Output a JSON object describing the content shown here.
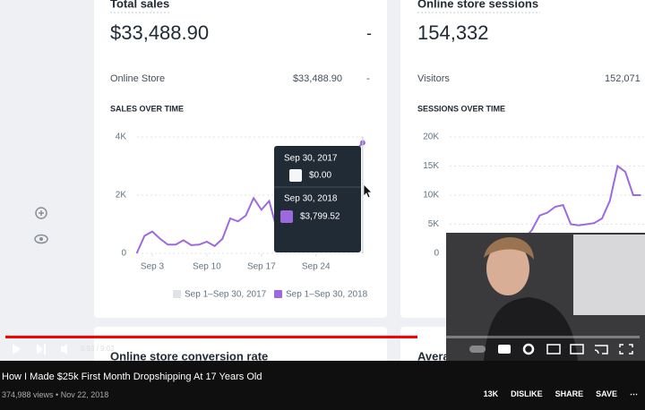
{
  "video": {
    "left_cards": [
      {
        "title": "Total sales",
        "value": "$33,488.90",
        "dash": "-",
        "row_label": "Online Store",
        "row_value": "$33,488.90",
        "row_dash": "-",
        "chart_title": "SALES OVER TIME",
        "chart": {
          "type": "line",
          "color": "#9c6ade",
          "x": [
            1,
            2,
            3,
            4,
            5,
            6,
            7,
            8,
            9,
            10,
            11,
            12,
            13,
            14,
            15,
            16,
            17,
            18,
            19,
            20,
            21,
            22,
            23,
            24,
            25,
            26,
            27,
            28,
            29,
            30
          ],
          "values": [
            0,
            600,
            750,
            500,
            300,
            300,
            450,
            280,
            300,
            400,
            250,
            500,
            1200,
            1100,
            1300,
            1900,
            1500,
            1800,
            800,
            1100,
            700,
            700,
            650,
            650,
            800,
            1000,
            1300,
            1500,
            3500,
            3799.52
          ],
          "xlim": [
            1,
            30
          ],
          "xticks": [
            {
              "value": 3,
              "label": "Sep 3"
            },
            {
              "value": 10,
              "label": "Sep 10"
            },
            {
              "value": 17,
              "label": "Sep 17"
            },
            {
              "value": 24,
              "label": "Sep 24"
            }
          ],
          "ylim": [
            0,
            4000
          ],
          "yticks": [
            {
              "value": 0,
              "label": "0"
            },
            {
              "value": 2000,
              "label": "2K"
            },
            {
              "value": 4000,
              "label": "4K"
            }
          ],
          "legend": [
            "Sep 1–Sep 30, 2017",
            "Sep 1–Sep 30, 2018"
          ],
          "tooltip": [
            "Sep 30, 2017",
            "$0.00",
            "Sep 30, 2018",
            "$3,799.52"
          ]
        }
      },
      {
        "title": "Online store sessions",
        "value": "154,332",
        "row_label": "Visitors",
        "row_value": "152,071",
        "chart_title": "SESSIONS OVER TIME",
        "chart": {
          "type": "line",
          "color": "#9c6ade",
          "x": [
            1,
            2,
            3,
            4,
            5,
            6,
            7,
            8,
            9,
            10,
            11,
            12,
            13,
            14,
            15,
            16,
            17,
            18,
            19,
            20,
            21,
            22,
            23,
            24,
            25,
            26
          ],
          "values": [
            1000,
            1500,
            1200,
            1000,
            900,
            1100,
            1000,
            1200,
            1300,
            1500,
            2500,
            4000,
            6500,
            7000,
            8000,
            8300,
            5000,
            4800,
            5000,
            5200,
            6000,
            9000,
            15000,
            14000,
            10000,
            10000
          ],
          "xlim": [
            1,
            30
          ],
          "ylim": [
            0,
            20000
          ],
          "yticks": [
            {
              "value": 0,
              "label": "0"
            },
            {
              "value": 5000,
              "label": "5K"
            },
            {
              "value": 10000,
              "label": "10K"
            },
            {
              "value": 15000,
              "label": "15K"
            },
            {
              "value": 20000,
              "label": "20K"
            }
          ]
        }
      }
    ],
    "second_row": [
      "Online store conversion rate",
      "Average order value"
    ],
    "time": "5:53 / 9:02"
  },
  "info": {
    "title": "How I Made $25k First Month Dropshipping At 17 Years Old",
    "meta": "374,988 views • Nov 22, 2018",
    "actions": [
      "13K",
      "DISLIKE",
      "SHARE",
      "SAVE"
    ]
  }
}
